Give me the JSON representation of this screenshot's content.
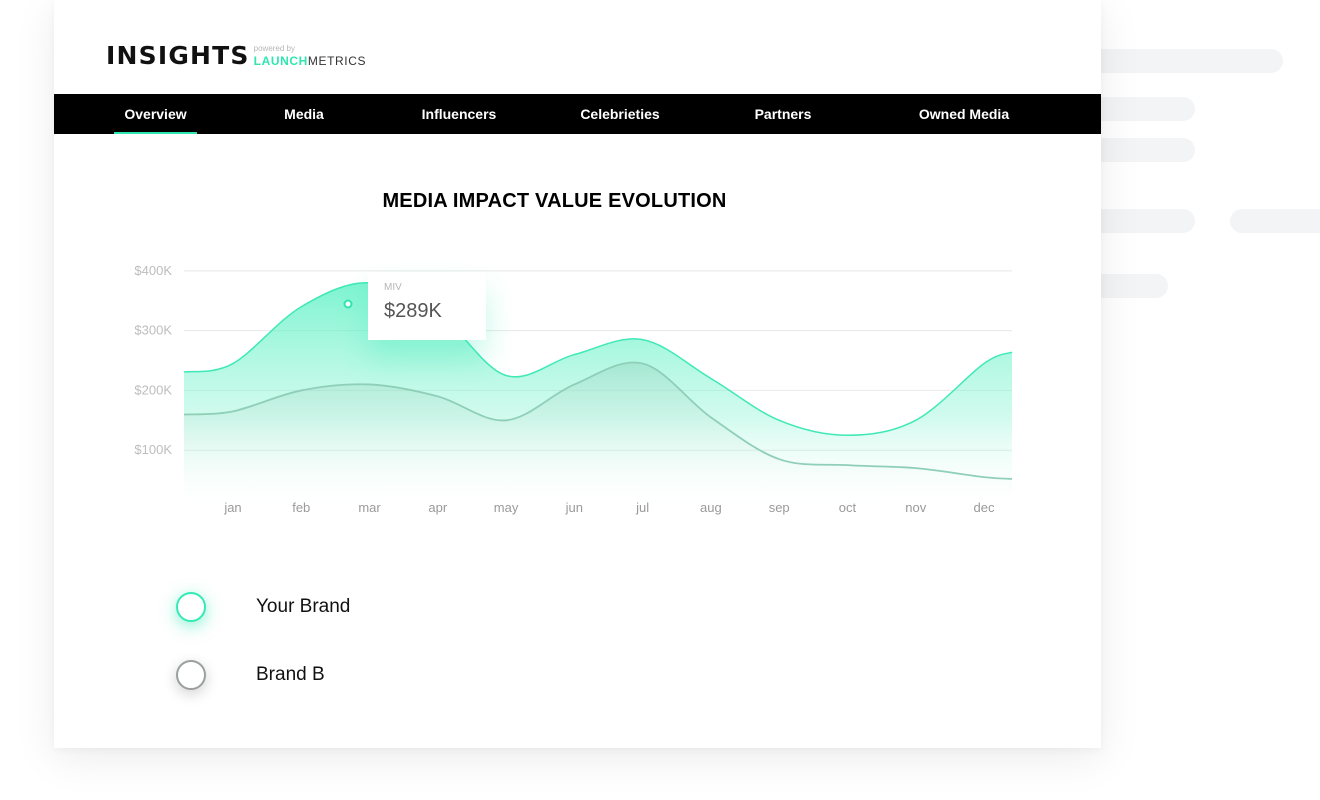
{
  "app": {
    "logo_main": "INSIGHTS",
    "logo_powered_by": "powered by",
    "logo_brand_a": "LAUNCH",
    "logo_brand_b": "METRICS"
  },
  "nav": {
    "tabs": [
      {
        "label": "Overview",
        "active": true
      },
      {
        "label": "Media",
        "active": false
      },
      {
        "label": "Influencers",
        "active": false
      },
      {
        "label": "Celebrieties",
        "active": false
      },
      {
        "label": "Partners",
        "active": false
      },
      {
        "label": "Owned Media",
        "active": false
      }
    ]
  },
  "chart_title": "MEDIA IMPACT VALUE EVOLUTION",
  "tooltip": {
    "label": "MIV",
    "value": "$289K"
  },
  "legend": {
    "your_brand": "Your Brand",
    "brand_b": "Brand B"
  },
  "colors": {
    "accent": "#2fe6b0",
    "nav_bg": "#000000",
    "brand_b_line": "#8fcfb8"
  },
  "chart_data": {
    "type": "area",
    "title": "MEDIA IMPACT VALUE EVOLUTION",
    "categories": [
      "jan",
      "feb",
      "mar",
      "apr",
      "may",
      "jun",
      "jul",
      "aug",
      "sep",
      "oct",
      "nov",
      "dec"
    ],
    "yticks": [
      "$100K",
      "$200K",
      "$300K",
      "$400K"
    ],
    "ylim": [
      0,
      460
    ],
    "grid": true,
    "series": [
      {
        "name": "Your Brand",
        "values": [
          245,
          340,
          380,
          330,
          225,
          260,
          285,
          220,
          150,
          125,
          150,
          245
        ]
      },
      {
        "name": "Brand B",
        "values": [
          165,
          200,
          210,
          190,
          150,
          210,
          245,
          155,
          85,
          75,
          70,
          55
        ]
      }
    ]
  }
}
